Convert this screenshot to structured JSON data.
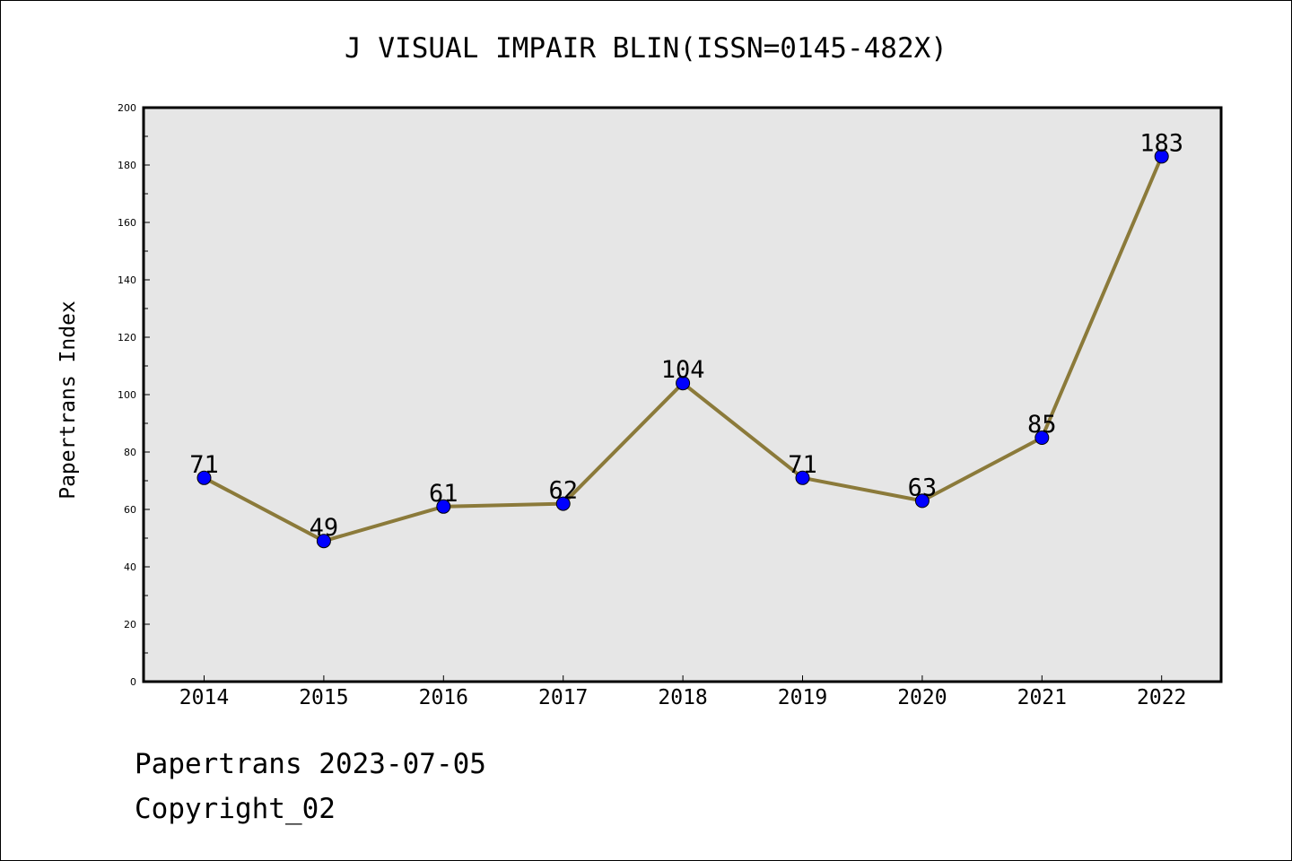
{
  "chart_data": {
    "type": "line",
    "title": "J VISUAL IMPAIR BLIN(ISSN=0145-482X)",
    "xlabel": "",
    "ylabel": "Papertrans Index",
    "categories": [
      "2014",
      "2015",
      "2016",
      "2017",
      "2018",
      "2019",
      "2020",
      "2021",
      "2022"
    ],
    "values": [
      71,
      49,
      61,
      62,
      104,
      71,
      63,
      85,
      183
    ],
    "ylim": [
      0,
      200
    ],
    "yticks": [
      0,
      20,
      40,
      60,
      80,
      100,
      120,
      140,
      160,
      180,
      200
    ],
    "grid": false,
    "line_color": "#8b7a3a",
    "marker_color": "#0000ff",
    "plot_background": "#e6e6e6"
  },
  "footer": {
    "date_text": "Papertrans 2023-07-05",
    "copyright_text": "Copyright_02"
  }
}
